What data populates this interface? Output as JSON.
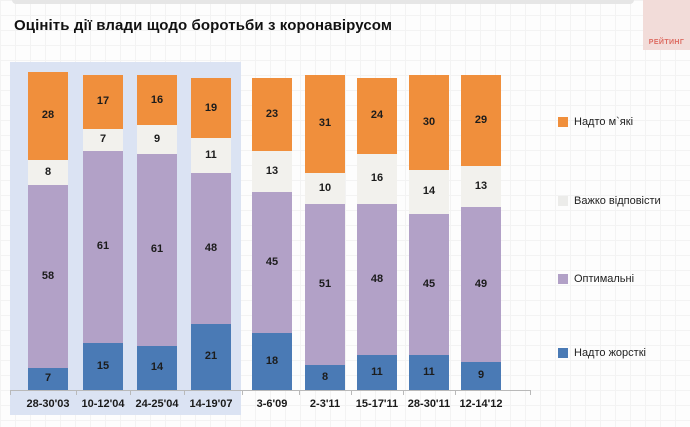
{
  "page": {
    "title": "Оцініть дії влади щодо боротьби з коронавірусом",
    "logo_text": "РЕЙТИНГ"
  },
  "colors": {
    "too_strict_blue": "#4a7ab5",
    "optimal_purple": "#b2a1c7",
    "hard_to_answer_white": "#f2f1ed",
    "too_soft_orange": "#f08f3c",
    "highlight_background": "#dbe3f3",
    "logo_background": "#f2dcd9",
    "logo_text": "#dd6b61",
    "axis": "#b9b9b9",
    "label_text": "#1c1c1c"
  },
  "chart_data": {
    "type": "bar",
    "stacked": true,
    "title": "Оцініть дії влади щодо боротьби з коронавірусом",
    "xlabel": "",
    "ylabel": "",
    "ylim": [
      0,
      100
    ],
    "value_unit": "percent",
    "grid": "faint page grid only",
    "legend_position": "right",
    "categories": [
      "28-30'03",
      "10-12'04",
      "24-25'04",
      "14-19'07",
      "3-6'09",
      "2-3'11",
      "15-17'11",
      "28-30'11",
      "12-14'12"
    ],
    "series": [
      {
        "name": "Надто жорсткі",
        "color": "#4a7ab5",
        "values": [
          7,
          15,
          14,
          21,
          18,
          8,
          11,
          11,
          9
        ]
      },
      {
        "name": "Оптимальні",
        "color": "#b2a1c7",
        "values": [
          58,
          61,
          61,
          48,
          45,
          51,
          48,
          45,
          49
        ]
      },
      {
        "name": "Важко відповісти",
        "color": "#f2f1ed",
        "values": [
          8,
          7,
          9,
          11,
          13,
          10,
          16,
          14,
          13
        ]
      },
      {
        "name": "Надто м`які",
        "color": "#f08f3c",
        "values": [
          28,
          17,
          16,
          19,
          23,
          31,
          24,
          30,
          29
        ]
      }
    ],
    "legend_items": [
      {
        "label": "Надто м`які",
        "color": "#f08f3c"
      },
      {
        "label": "Важко відповісти",
        "color": "#ececea"
      },
      {
        "label": "Оптимальні",
        "color": "#b2a1c7"
      },
      {
        "label": "Надто жорсткі",
        "color": "#4a7ab5"
      }
    ],
    "highlighted_categories": [
      "28-30'03",
      "10-12'04",
      "24-25'04",
      "14-19'07"
    ]
  }
}
